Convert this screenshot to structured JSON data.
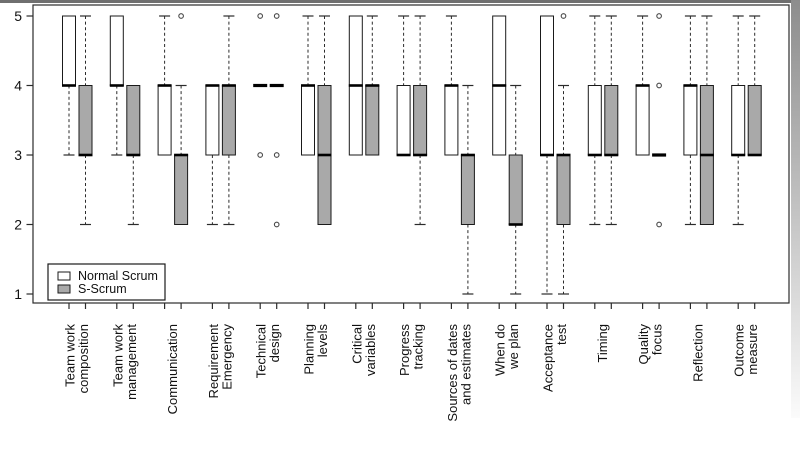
{
  "chart_data": {
    "type": "boxplot",
    "title": "",
    "xlabel": "",
    "ylabel": "",
    "ylim": [
      1,
      5
    ],
    "yticks": [
      1,
      2,
      3,
      4,
      5
    ],
    "grid": false,
    "legend": {
      "position": "bottom-left",
      "entries": [
        {
          "label": "Normal Scrum",
          "fill": "#ffffff"
        },
        {
          "label": "S-Scrum",
          "fill": "#a9a9a9"
        }
      ]
    },
    "series": [
      {
        "name": "Normal Scrum",
        "fill": "#ffffff"
      },
      {
        "name": "S-Scrum",
        "fill": "#a9a9a9"
      }
    ],
    "categories": [
      {
        "label": "Team work composition",
        "label_lines": [
          "Team work",
          "composition"
        ],
        "boxes": [
          {
            "q1": 4,
            "median": 4,
            "q3": 5,
            "whisker_low": 3,
            "whisker_high": 5,
            "outliers": []
          },
          {
            "q1": 3,
            "median": 3,
            "q3": 4,
            "whisker_low": 2,
            "whisker_high": 5,
            "outliers": []
          }
        ]
      },
      {
        "label": "Team work management",
        "label_lines": [
          "Team work",
          "management"
        ],
        "boxes": [
          {
            "q1": 4,
            "median": 4,
            "q3": 5,
            "whisker_low": 3,
            "whisker_high": 5,
            "outliers": []
          },
          {
            "q1": 3,
            "median": 3,
            "q3": 4,
            "whisker_low": 2,
            "whisker_high": 4,
            "outliers": []
          }
        ]
      },
      {
        "label": "Communication",
        "label_lines": [
          "Communication"
        ],
        "boxes": [
          {
            "q1": 3,
            "median": 4,
            "q3": 4,
            "whisker_low": 3,
            "whisker_high": 5,
            "outliers": []
          },
          {
            "q1": 2,
            "median": 3,
            "q3": 3,
            "whisker_low": 2,
            "whisker_high": 4,
            "outliers": [
              5
            ]
          }
        ]
      },
      {
        "label": "Requirement Emergency",
        "label_lines": [
          "Requirement",
          "Emergency"
        ],
        "boxes": [
          {
            "q1": 3,
            "median": 4,
            "q3": 4,
            "whisker_low": 2,
            "whisker_high": 4,
            "outliers": []
          },
          {
            "q1": 3,
            "median": 4,
            "q3": 4,
            "whisker_low": 2,
            "whisker_high": 5,
            "outliers": []
          }
        ]
      },
      {
        "label": "Technical design",
        "label_lines": [
          "Technical",
          "design"
        ],
        "boxes": [
          {
            "q1": 4,
            "median": 4,
            "q3": 4,
            "whisker_low": 4,
            "whisker_high": 4,
            "outliers": [
              5,
              3
            ]
          },
          {
            "q1": 4,
            "median": 4,
            "q3": 4,
            "whisker_low": 4,
            "whisker_high": 4,
            "outliers": [
              5,
              3,
              2
            ]
          }
        ]
      },
      {
        "label": "Planning levels",
        "label_lines": [
          "Planning",
          "levels"
        ],
        "boxes": [
          {
            "q1": 3,
            "median": 4,
            "q3": 4,
            "whisker_low": 3,
            "whisker_high": 5,
            "outliers": []
          },
          {
            "q1": 2,
            "median": 3,
            "q3": 4,
            "whisker_low": 2,
            "whisker_high": 5,
            "outliers": []
          }
        ]
      },
      {
        "label": "Critical variables",
        "label_lines": [
          "Critical",
          "variables"
        ],
        "boxes": [
          {
            "q1": 3,
            "median": 4,
            "q3": 5,
            "whisker_low": 3,
            "whisker_high": 5,
            "outliers": []
          },
          {
            "q1": 3,
            "median": 4,
            "q3": 4,
            "whisker_low": 3,
            "whisker_high": 5,
            "outliers": []
          }
        ]
      },
      {
        "label": "Progress tracking",
        "label_lines": [
          "Progress",
          "tracking"
        ],
        "boxes": [
          {
            "q1": 3,
            "median": 3,
            "q3": 4,
            "whisker_low": 3,
            "whisker_high": 5,
            "outliers": []
          },
          {
            "q1": 3,
            "median": 3,
            "q3": 4,
            "whisker_low": 2,
            "whisker_high": 5,
            "outliers": []
          }
        ]
      },
      {
        "label": "Sources of dates and estimates",
        "label_lines": [
          "Sources of dates",
          "and estimates"
        ],
        "boxes": [
          {
            "q1": 3,
            "median": 4,
            "q3": 4,
            "whisker_low": 3,
            "whisker_high": 5,
            "outliers": []
          },
          {
            "q1": 2,
            "median": 3,
            "q3": 3,
            "whisker_low": 1,
            "whisker_high": 4,
            "outliers": []
          }
        ]
      },
      {
        "label": "When do we plan",
        "label_lines": [
          "When do",
          "we plan"
        ],
        "boxes": [
          {
            "q1": 3,
            "median": 4,
            "q3": 5,
            "whisker_low": 3,
            "whisker_high": 5,
            "outliers": []
          },
          {
            "q1": 2,
            "median": 2,
            "q3": 3,
            "whisker_low": 1,
            "whisker_high": 4,
            "outliers": []
          }
        ]
      },
      {
        "label": "Acceptance test",
        "label_lines": [
          "Acceptance",
          "test"
        ],
        "boxes": [
          {
            "q1": 3,
            "median": 3,
            "q3": 5,
            "whisker_low": 1,
            "whisker_high": 5,
            "outliers": []
          },
          {
            "q1": 2,
            "median": 3,
            "q3": 3,
            "whisker_low": 1,
            "whisker_high": 4,
            "outliers": [
              5
            ]
          }
        ]
      },
      {
        "label": "Timing",
        "label_lines": [
          "Timing"
        ],
        "boxes": [
          {
            "q1": 3,
            "median": 3,
            "q3": 4,
            "whisker_low": 2,
            "whisker_high": 5,
            "outliers": []
          },
          {
            "q1": 3,
            "median": 3,
            "q3": 4,
            "whisker_low": 2,
            "whisker_high": 5,
            "outliers": []
          }
        ]
      },
      {
        "label": "Quality focus",
        "label_lines": [
          "Quality",
          "focus"
        ],
        "boxes": [
          {
            "q1": 3,
            "median": 4,
            "q3": 4,
            "whisker_low": 3,
            "whisker_high": 5,
            "outliers": []
          },
          {
            "q1": 3,
            "median": 3,
            "q3": 3,
            "whisker_low": 3,
            "whisker_high": 3,
            "outliers": [
              5,
              4,
              2
            ]
          }
        ]
      },
      {
        "label": "Reflection",
        "label_lines": [
          "Reflection"
        ],
        "boxes": [
          {
            "q1": 3,
            "median": 4,
            "q3": 4,
            "whisker_low": 2,
            "whisker_high": 5,
            "outliers": []
          },
          {
            "q1": 2,
            "median": 3,
            "q3": 4,
            "whisker_low": 2,
            "whisker_high": 5,
            "outliers": []
          }
        ]
      },
      {
        "label": "Outcome measure",
        "label_lines": [
          "Outcome",
          "measure"
        ],
        "boxes": [
          {
            "q1": 3,
            "median": 3,
            "q3": 4,
            "whisker_low": 2,
            "whisker_high": 5,
            "outliers": []
          },
          {
            "q1": 3,
            "median": 3,
            "q3": 4,
            "whisker_low": 3,
            "whisker_high": 5,
            "outliers": []
          }
        ]
      }
    ]
  },
  "colors": {
    "axis": "#2b2b2b",
    "box_stroke": "#1a1a1a",
    "median": "#000000",
    "whisker": "#2b2b2b",
    "outlier_stroke": "#4a4a4a",
    "plot_background": "#ffffff",
    "window_top_edge": "#6f6f6f",
    "window_right_edge_top": "#8d8d8d",
    "window_right_edge_bottom": "#fbfbfb"
  }
}
